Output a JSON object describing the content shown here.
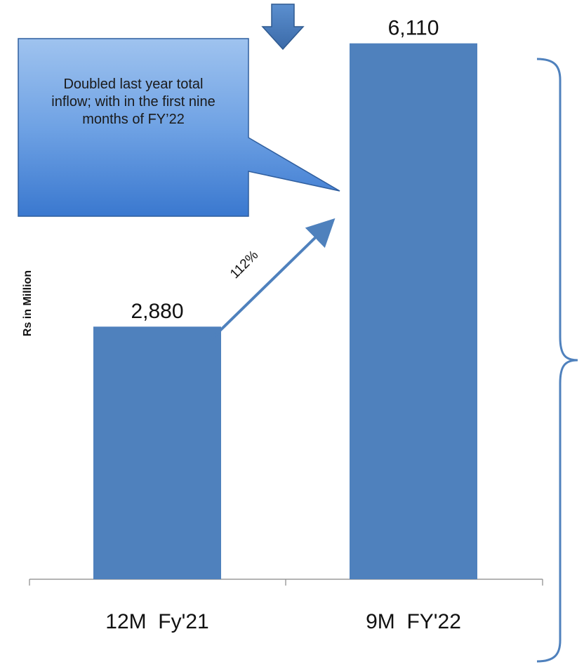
{
  "chart_data": {
    "type": "bar",
    "categories": [
      "12M  Fy'21",
      "9M  FY'22"
    ],
    "values": [
      2880,
      6110
    ],
    "value_labels": [
      "2,880",
      "6,110"
    ],
    "ylabel": "Rs in Million",
    "ylim": [
      0,
      6500
    ],
    "grid": false,
    "bar_color": "#4f81bd",
    "growth_annotation": "112%"
  },
  "callout": {
    "text": "Doubled last year total inflow;  with in the first nine months of FY’22",
    "fill_color": "#4a86d8"
  },
  "colors": {
    "arrow": "#4f81bd",
    "brace": "#4f81bd",
    "axis": "#888888"
  }
}
